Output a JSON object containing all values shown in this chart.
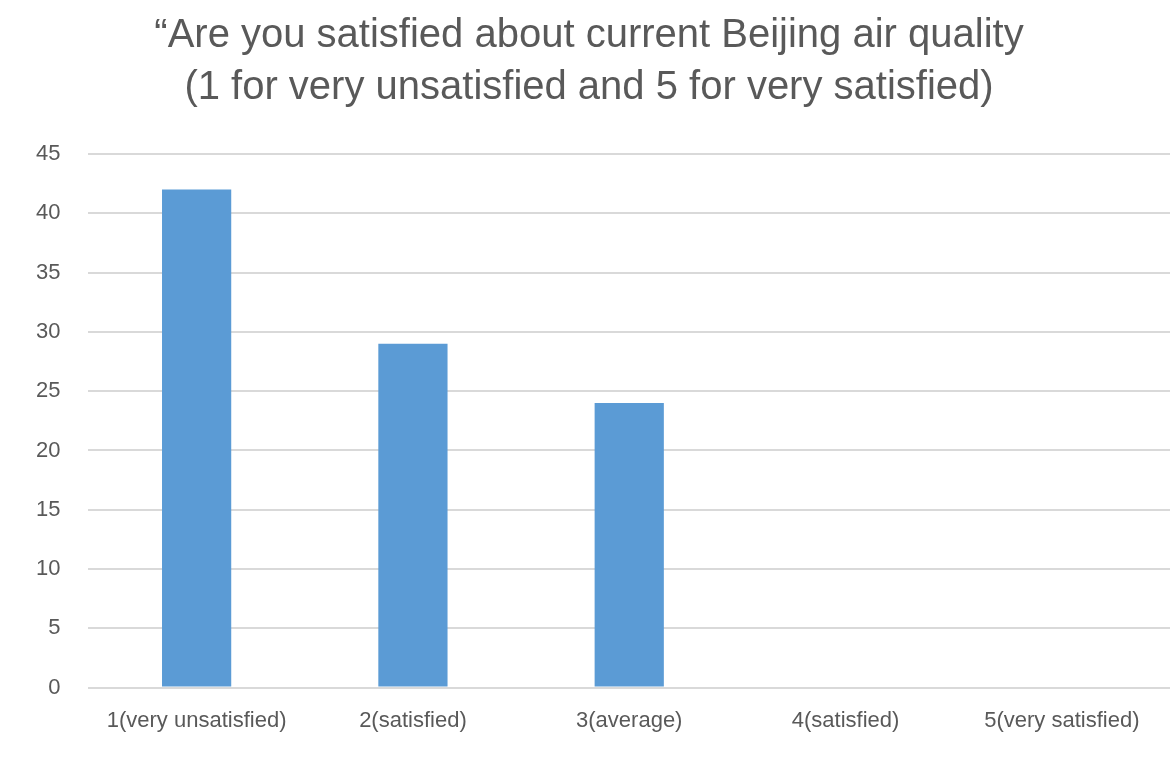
{
  "chart_data": {
    "type": "bar",
    "title": "“Are you satisfied about current Beijing air quality\n(1 for very unsatisfied and 5 for very satisfied)",
    "categories": [
      "1(very unsatisfied)",
      "2(satisfied)",
      "3(average)",
      "4(satisfied)",
      "5(very satisfied)"
    ],
    "values": [
      42,
      29,
      24,
      0,
      0
    ],
    "color": "#5b9bd5",
    "ylim": [
      0,
      45
    ],
    "yticks": [
      0,
      5,
      10,
      15,
      20,
      25,
      30,
      35,
      40,
      45
    ],
    "grid": "y"
  }
}
